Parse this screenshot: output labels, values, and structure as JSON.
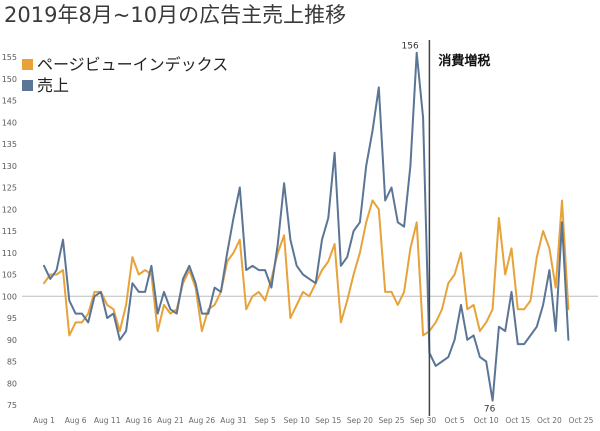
{
  "chart_data": {
    "type": "line",
    "title": "2019年8月~10月の広告主売上推移",
    "xlabel": "",
    "ylabel": "",
    "legend": "top-left",
    "grid": false,
    "xlim": [
      "2019-08-01",
      "2019-10-25"
    ],
    "ylim": [
      75,
      155
    ],
    "yticks": [
      155,
      150,
      145,
      140,
      135,
      130,
      125,
      120,
      115,
      110,
      105,
      100,
      95,
      90,
      85,
      80,
      75
    ],
    "xticks": [
      "Aug 1",
      "Aug 6",
      "Aug 11",
      "Aug 16",
      "Aug 21",
      "Aug 26",
      "Aug 31",
      "Sep 5",
      "Sep 10",
      "Sep 15",
      "Sep 20",
      "Sep 25",
      "Sep 30",
      "Oct 5",
      "Oct 10",
      "Oct 15",
      "Oct 20",
      "Oct 25"
    ],
    "x": [
      "2019-08-01",
      "2019-08-02",
      "2019-08-03",
      "2019-08-04",
      "2019-08-05",
      "2019-08-06",
      "2019-08-07",
      "2019-08-08",
      "2019-08-09",
      "2019-08-10",
      "2019-08-11",
      "2019-08-12",
      "2019-08-13",
      "2019-08-14",
      "2019-08-15",
      "2019-08-16",
      "2019-08-17",
      "2019-08-18",
      "2019-08-19",
      "2019-08-20",
      "2019-08-21",
      "2019-08-22",
      "2019-08-23",
      "2019-08-24",
      "2019-08-25",
      "2019-08-26",
      "2019-08-27",
      "2019-08-28",
      "2019-08-29",
      "2019-08-30",
      "2019-08-31",
      "2019-09-01",
      "2019-09-02",
      "2019-09-03",
      "2019-09-04",
      "2019-09-05",
      "2019-09-06",
      "2019-09-07",
      "2019-09-08",
      "2019-09-09",
      "2019-09-10",
      "2019-09-11",
      "2019-09-12",
      "2019-09-13",
      "2019-09-14",
      "2019-09-15",
      "2019-09-16",
      "2019-09-17",
      "2019-09-18",
      "2019-09-19",
      "2019-09-20",
      "2019-09-21",
      "2019-09-22",
      "2019-09-23",
      "2019-09-24",
      "2019-09-25",
      "2019-09-26",
      "2019-09-27",
      "2019-09-28",
      "2019-09-29",
      "2019-09-30",
      "2019-10-01",
      "2019-10-02",
      "2019-10-03",
      "2019-10-04",
      "2019-10-05",
      "2019-10-06",
      "2019-10-07",
      "2019-10-08",
      "2019-10-09",
      "2019-10-10",
      "2019-10-11",
      "2019-10-12",
      "2019-10-13",
      "2019-10-14",
      "2019-10-15",
      "2019-10-16",
      "2019-10-17",
      "2019-10-18",
      "2019-10-19",
      "2019-10-20",
      "2019-10-21",
      "2019-10-22",
      "2019-10-23"
    ],
    "series": [
      {
        "name": "ページビューインデックス",
        "color": "#E7A23A",
        "values": [
          103,
          105,
          105,
          106,
          91,
          94,
          94,
          96,
          101,
          101,
          98,
          97,
          92,
          98,
          109,
          105,
          106,
          105,
          92,
          98,
          96,
          97,
          103,
          106,
          102,
          92,
          97,
          98,
          101,
          108,
          110,
          113,
          97,
          100,
          101,
          99,
          104,
          110,
          114,
          95,
          98,
          101,
          100,
          103,
          106,
          108,
          112,
          94,
          99,
          105,
          110,
          117,
          122,
          120,
          101,
          101,
          98,
          101,
          111,
          117,
          91,
          92,
          94,
          97,
          103,
          105,
          110,
          97,
          98,
          92,
          94,
          97,
          118,
          105,
          111,
          97,
          97,
          99,
          109,
          115,
          111,
          102,
          122,
          97
        ]
      },
      {
        "name": "売上",
        "color": "#5B7597",
        "values": [
          107,
          104,
          106,
          113,
          99,
          96,
          96,
          94,
          100,
          101,
          95,
          96,
          90,
          92,
          103,
          101,
          101,
          107,
          96,
          101,
          97,
          96,
          104,
          107,
          103,
          96,
          96,
          102,
          101,
          110,
          118,
          125,
          106,
          107,
          106,
          106,
          102,
          112,
          126,
          113,
          107,
          105,
          104,
          103,
          113,
          118,
          133,
          107,
          109,
          115,
          117,
          130,
          138,
          148,
          122,
          125,
          117,
          116,
          130,
          156,
          141,
          87,
          84,
          85,
          86,
          90,
          98,
          90,
          91,
          86,
          85,
          76,
          93,
          92,
          101,
          89,
          89,
          91,
          93,
          98,
          106,
          92,
          117,
          90
        ]
      }
    ],
    "reference_line": {
      "y": 100
    },
    "event_line": {
      "x": "2019-10-01",
      "label": "消費増税"
    },
    "annotations": [
      {
        "text": "156",
        "x": "2019-09-29",
        "y": 156
      },
      {
        "text": "76",
        "x": "2019-10-11",
        "y": 76
      }
    ]
  }
}
